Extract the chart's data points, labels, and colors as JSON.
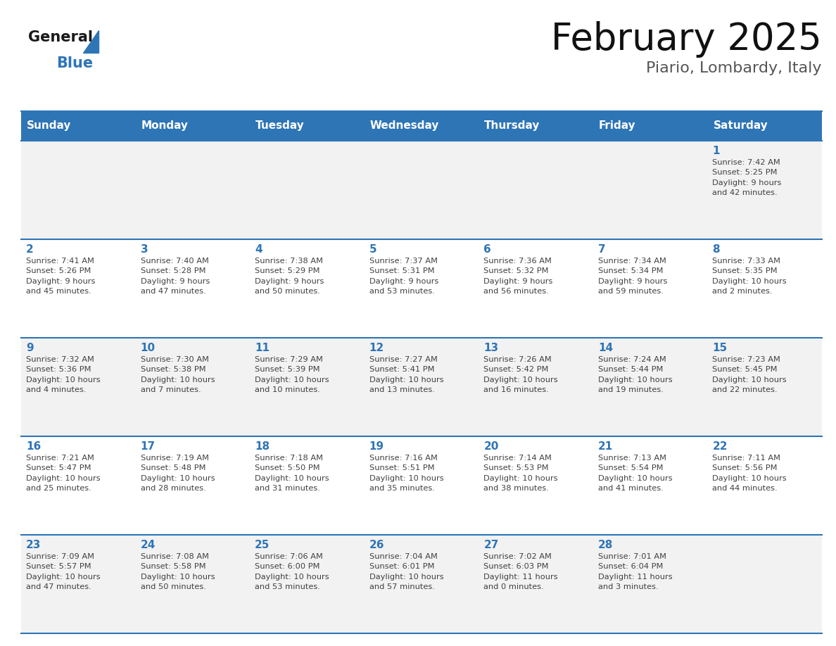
{
  "title": "February 2025",
  "subtitle": "Piario, Lombardy, Italy",
  "header_bg": "#2E75B6",
  "header_text_color": "#FFFFFF",
  "cell_bg_light": "#F2F2F2",
  "cell_bg_white": "#FFFFFF",
  "day_number_color": "#2E75B6",
  "info_text_color": "#404040",
  "border_color": "#2E75B6",
  "days_of_week": [
    "Sunday",
    "Monday",
    "Tuesday",
    "Wednesday",
    "Thursday",
    "Friday",
    "Saturday"
  ],
  "weeks": [
    [
      {
        "day": "",
        "info": ""
      },
      {
        "day": "",
        "info": ""
      },
      {
        "day": "",
        "info": ""
      },
      {
        "day": "",
        "info": ""
      },
      {
        "day": "",
        "info": ""
      },
      {
        "day": "",
        "info": ""
      },
      {
        "day": "1",
        "info": "Sunrise: 7:42 AM\nSunset: 5:25 PM\nDaylight: 9 hours\nand 42 minutes."
      }
    ],
    [
      {
        "day": "2",
        "info": "Sunrise: 7:41 AM\nSunset: 5:26 PM\nDaylight: 9 hours\nand 45 minutes."
      },
      {
        "day": "3",
        "info": "Sunrise: 7:40 AM\nSunset: 5:28 PM\nDaylight: 9 hours\nand 47 minutes."
      },
      {
        "day": "4",
        "info": "Sunrise: 7:38 AM\nSunset: 5:29 PM\nDaylight: 9 hours\nand 50 minutes."
      },
      {
        "day": "5",
        "info": "Sunrise: 7:37 AM\nSunset: 5:31 PM\nDaylight: 9 hours\nand 53 minutes."
      },
      {
        "day": "6",
        "info": "Sunrise: 7:36 AM\nSunset: 5:32 PM\nDaylight: 9 hours\nand 56 minutes."
      },
      {
        "day": "7",
        "info": "Sunrise: 7:34 AM\nSunset: 5:34 PM\nDaylight: 9 hours\nand 59 minutes."
      },
      {
        "day": "8",
        "info": "Sunrise: 7:33 AM\nSunset: 5:35 PM\nDaylight: 10 hours\nand 2 minutes."
      }
    ],
    [
      {
        "day": "9",
        "info": "Sunrise: 7:32 AM\nSunset: 5:36 PM\nDaylight: 10 hours\nand 4 minutes."
      },
      {
        "day": "10",
        "info": "Sunrise: 7:30 AM\nSunset: 5:38 PM\nDaylight: 10 hours\nand 7 minutes."
      },
      {
        "day": "11",
        "info": "Sunrise: 7:29 AM\nSunset: 5:39 PM\nDaylight: 10 hours\nand 10 minutes."
      },
      {
        "day": "12",
        "info": "Sunrise: 7:27 AM\nSunset: 5:41 PM\nDaylight: 10 hours\nand 13 minutes."
      },
      {
        "day": "13",
        "info": "Sunrise: 7:26 AM\nSunset: 5:42 PM\nDaylight: 10 hours\nand 16 minutes."
      },
      {
        "day": "14",
        "info": "Sunrise: 7:24 AM\nSunset: 5:44 PM\nDaylight: 10 hours\nand 19 minutes."
      },
      {
        "day": "15",
        "info": "Sunrise: 7:23 AM\nSunset: 5:45 PM\nDaylight: 10 hours\nand 22 minutes."
      }
    ],
    [
      {
        "day": "16",
        "info": "Sunrise: 7:21 AM\nSunset: 5:47 PM\nDaylight: 10 hours\nand 25 minutes."
      },
      {
        "day": "17",
        "info": "Sunrise: 7:19 AM\nSunset: 5:48 PM\nDaylight: 10 hours\nand 28 minutes."
      },
      {
        "day": "18",
        "info": "Sunrise: 7:18 AM\nSunset: 5:50 PM\nDaylight: 10 hours\nand 31 minutes."
      },
      {
        "day": "19",
        "info": "Sunrise: 7:16 AM\nSunset: 5:51 PM\nDaylight: 10 hours\nand 35 minutes."
      },
      {
        "day": "20",
        "info": "Sunrise: 7:14 AM\nSunset: 5:53 PM\nDaylight: 10 hours\nand 38 minutes."
      },
      {
        "day": "21",
        "info": "Sunrise: 7:13 AM\nSunset: 5:54 PM\nDaylight: 10 hours\nand 41 minutes."
      },
      {
        "day": "22",
        "info": "Sunrise: 7:11 AM\nSunset: 5:56 PM\nDaylight: 10 hours\nand 44 minutes."
      }
    ],
    [
      {
        "day": "23",
        "info": "Sunrise: 7:09 AM\nSunset: 5:57 PM\nDaylight: 10 hours\nand 47 minutes."
      },
      {
        "day": "24",
        "info": "Sunrise: 7:08 AM\nSunset: 5:58 PM\nDaylight: 10 hours\nand 50 minutes."
      },
      {
        "day": "25",
        "info": "Sunrise: 7:06 AM\nSunset: 6:00 PM\nDaylight: 10 hours\nand 53 minutes."
      },
      {
        "day": "26",
        "info": "Sunrise: 7:04 AM\nSunset: 6:01 PM\nDaylight: 10 hours\nand 57 minutes."
      },
      {
        "day": "27",
        "info": "Sunrise: 7:02 AM\nSunset: 6:03 PM\nDaylight: 11 hours\nand 0 minutes."
      },
      {
        "day": "28",
        "info": "Sunrise: 7:01 AM\nSunset: 6:04 PM\nDaylight: 11 hours\nand 3 minutes."
      },
      {
        "day": "",
        "info": ""
      }
    ]
  ]
}
